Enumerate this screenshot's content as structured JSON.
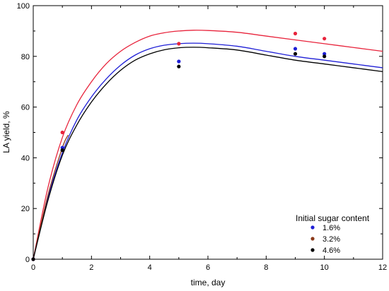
{
  "chart_data": {
    "type": "scatter",
    "title": "",
    "xlabel": "time, day",
    "ylabel": "LA yield, %",
    "xlim": [
      0,
      12
    ],
    "ylim": [
      0,
      100
    ],
    "xticks": [
      0,
      2,
      4,
      6,
      8,
      10,
      12
    ],
    "yticks": [
      0,
      20,
      40,
      60,
      80,
      100
    ],
    "grid": false,
    "legend": {
      "title": "Initial sugar content",
      "position": "bottom-right",
      "entries": [
        {
          "label": "1.6%",
          "color": "#1f1fd6"
        },
        {
          "label": "3.2%",
          "color": "#8b3a1a"
        },
        {
          "label": "4.6%",
          "color": "#000000"
        }
      ]
    },
    "points": [
      {
        "name": "red",
        "color": "#e8243c",
        "x": [
          0,
          1,
          5,
          9,
          10
        ],
        "y": [
          0,
          50,
          85,
          89,
          87
        ]
      },
      {
        "name": "blue",
        "color": "#1f1fd6",
        "x": [
          0,
          1,
          5,
          9,
          10
        ],
        "y": [
          0,
          44,
          78,
          83,
          81
        ]
      },
      {
        "name": "black",
        "color": "#000000",
        "x": [
          0,
          1,
          5,
          9,
          10
        ],
        "y": [
          0,
          43,
          76,
          81,
          80
        ]
      }
    ],
    "curves": [
      {
        "name": "red",
        "color": "#e8243c",
        "x": [
          0,
          0.5,
          1,
          1.5,
          2,
          2.5,
          3,
          3.5,
          4,
          4.5,
          5,
          5.5,
          6,
          7,
          8,
          9,
          10,
          11,
          12
        ],
        "y": [
          0,
          28,
          48,
          61,
          70,
          77,
          82,
          85.5,
          88,
          89.3,
          90,
          90.3,
          90.2,
          89.5,
          88,
          86.5,
          85,
          83.5,
          82
        ]
      },
      {
        "name": "blue",
        "color": "#1f1fd6",
        "x": [
          0,
          0.5,
          1,
          1.5,
          2,
          2.5,
          3,
          3.5,
          4,
          4.5,
          5,
          5.5,
          6,
          7,
          8,
          9,
          10,
          11,
          12
        ],
        "y": [
          0,
          24,
          42,
          55,
          64,
          71,
          76.5,
          80.5,
          83,
          84.4,
          85,
          85.2,
          85,
          84,
          82,
          80,
          78.5,
          77,
          75.5
        ]
      },
      {
        "name": "brown",
        "color": "#8b3a1a",
        "x": [
          0,
          0.5,
          1,
          1.2
        ],
        "y": [
          0,
          25,
          44,
          49
        ]
      },
      {
        "name": "black",
        "color": "#000000",
        "x": [
          0,
          0.5,
          1,
          1.5,
          2,
          2.5,
          3,
          3.5,
          4,
          4.5,
          5,
          5.5,
          6,
          7,
          8,
          9,
          10,
          11,
          12
        ],
        "y": [
          0,
          23,
          41,
          53,
          62,
          69,
          74.5,
          78.5,
          81,
          82.6,
          83.4,
          83.6,
          83.4,
          82.5,
          80.5,
          78.5,
          77,
          75.5,
          74
        ]
      }
    ]
  }
}
